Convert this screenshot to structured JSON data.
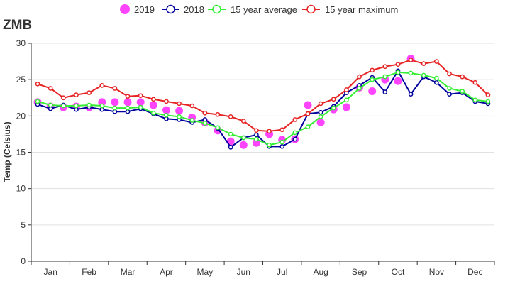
{
  "chart_data": {
    "type": "line",
    "title": "ZMB",
    "ylabel": "Temp (Celsius)",
    "ylim": [
      0,
      30
    ],
    "yticks": [
      0,
      5,
      10,
      15,
      20,
      25,
      30
    ],
    "categories": [
      "Jan",
      "Feb",
      "Mar",
      "Apr",
      "May",
      "Jun",
      "Jul",
      "Aug",
      "Sep",
      "Oct",
      "Nov",
      "Dec"
    ],
    "grid": true,
    "legend": "top-center",
    "series": [
      {
        "name": "2019",
        "type": "scatter",
        "color": "#ff44ff",
        "values": [
          [
            21.9,
            21.3,
            21.2
          ],
          [
            21.3,
            21.2,
            21.9
          ],
          [
            21.9,
            21.9,
            21.9
          ],
          [
            21.5,
            20.8,
            20.7
          ],
          [
            19.8,
            19.1,
            18.0
          ],
          [
            16.5,
            16.0,
            16.3
          ],
          [
            17.5,
            16.7,
            16.8
          ],
          [
            21.5,
            19.1,
            20.9
          ],
          [
            21.2,
            23.9,
            23.4
          ],
          [
            25.0,
            24.8,
            27.9
          ]
        ]
      },
      {
        "name": "2018",
        "type": "line",
        "color": "#00009c",
        "values": [
          [
            21.6,
            21.0,
            21.5
          ],
          [
            20.9,
            21.2,
            20.9
          ],
          [
            20.6,
            20.6,
            21.0
          ],
          [
            20.3,
            19.6,
            19.5
          ],
          [
            19.1,
            19.5,
            18.3
          ],
          [
            15.7,
            17.0,
            17.4
          ],
          [
            15.8,
            15.8,
            16.8
          ],
          [
            20.3,
            20.5,
            21.3
          ],
          [
            23.2,
            24.2,
            25.3
          ],
          [
            23.3,
            26.2,
            23.0
          ],
          [
            25.4,
            24.6,
            23.0
          ],
          [
            23.2,
            22.0,
            21.7
          ]
        ]
      },
      {
        "name": "15 year average",
        "type": "line",
        "color": "#33ee33",
        "values": [
          [
            22.0,
            21.5,
            21.4
          ],
          [
            21.4,
            21.5,
            21.4
          ],
          [
            21.1,
            21.1,
            21.2
          ],
          [
            20.4,
            20.1,
            19.9
          ],
          [
            19.4,
            19.0,
            18.4
          ],
          [
            17.5,
            17.0,
            16.8
          ],
          [
            16.0,
            16.4,
            17.7
          ],
          [
            18.5,
            19.9,
            21.1
          ],
          [
            22.2,
            23.8,
            25.0
          ],
          [
            25.4,
            26.0,
            25.9
          ],
          [
            25.6,
            25.2,
            23.8
          ],
          [
            23.4,
            22.2,
            22.0
          ]
        ]
      },
      {
        "name": "15 year maximum",
        "type": "line",
        "color": "#e62222",
        "values": [
          [
            24.4,
            23.8,
            22.5
          ],
          [
            22.9,
            23.2,
            24.2
          ],
          [
            23.8,
            22.7,
            22.8
          ],
          [
            22.3,
            22.0,
            21.7
          ],
          [
            21.4,
            20.4,
            20.2
          ],
          [
            19.9,
            19.3,
            18.0
          ],
          [
            17.9,
            18.1,
            19.5
          ],
          [
            20.3,
            21.7,
            22.3
          ],
          [
            23.6,
            25.4,
            26.3
          ],
          [
            26.8,
            27.1,
            27.7
          ],
          [
            27.2,
            27.5,
            25.8
          ],
          [
            25.4,
            24.6,
            22.9
          ]
        ]
      }
    ]
  }
}
